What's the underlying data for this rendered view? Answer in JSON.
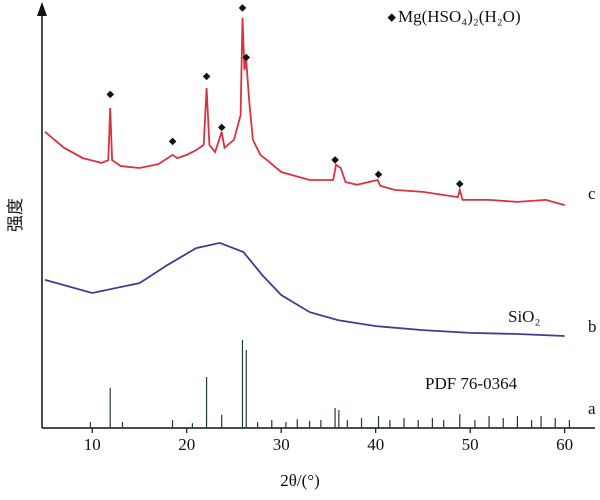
{
  "chart_data": {
    "type": "line",
    "xlabel": "2θ/(°)",
    "ylabel": "强度",
    "legend": {
      "symbol": "◆",
      "text": "Mg(HSO₄)₂(H₂O)",
      "position": "upper right"
    },
    "xlim": [
      5,
      63
    ],
    "xticks": [
      10,
      20,
      30,
      40,
      50,
      60
    ],
    "ylim": [
      0,
      106
    ],
    "series": [
      {
        "name": "c",
        "color": "#d9333f",
        "style": "line",
        "x": [
          5,
          7,
          9,
          11,
          11.7,
          11.9,
          12.1,
          13,
          15,
          17,
          18.5,
          19,
          20,
          21,
          21.8,
          22.1,
          22.4,
          23,
          23.7,
          24,
          25,
          25.7,
          25.9,
          26.1,
          26.3,
          26.6,
          27,
          27.8,
          28.5,
          30,
          33,
          35.5,
          35.8,
          36.3,
          36.8,
          38,
          40.2,
          40.5,
          42,
          45,
          48.7,
          48.9,
          49.2,
          52,
          55,
          58,
          60
        ],
        "values": [
          74.4,
          70.4,
          67.8,
          66.6,
          67.3,
          80.4,
          67.3,
          65.8,
          65.3,
          66.3,
          68.6,
          67.8,
          68.6,
          69.8,
          71.1,
          85.4,
          71.1,
          69.3,
          74.4,
          70.4,
          72.4,
          78.6,
          103.0,
          89.9,
          92.5,
          82.4,
          72.4,
          68.6,
          67.3,
          64.3,
          62.3,
          62.3,
          66.1,
          65.3,
          61.8,
          61.1,
          62.3,
          60.8,
          59.8,
          59.3,
          58.0,
          59.8,
          57.3,
          57.3,
          56.8,
          57.3,
          56.0
        ]
      },
      {
        "name": "b",
        "label": "SiO₂",
        "color": "#3b3f8f",
        "style": "line",
        "x": [
          5,
          10,
          15,
          18,
          21,
          23.5,
          26,
          28,
          30,
          33,
          36,
          40,
          45,
          50,
          55,
          60
        ],
        "values": [
          37.2,
          33.9,
          36.4,
          41.0,
          45.2,
          46.5,
          44.2,
          38.4,
          33.4,
          29.1,
          27.1,
          25.6,
          24.6,
          23.9,
          23.6,
          23.1
        ]
      },
      {
        "name": "a",
        "label": "PDF 76-0364",
        "color": "#1f3a3a",
        "style": "sticks",
        "x": [
          9.8,
          11.9,
          13.2,
          18.5,
          20.6,
          22.1,
          23.7,
          25.9,
          26.3,
          27.5,
          29,
          30.5,
          31.7,
          33,
          34.2,
          35.7,
          36.1,
          37,
          38.5,
          40.3,
          41.5,
          43,
          44.5,
          46,
          47.2,
          48.9,
          50.5,
          52,
          53.5,
          55,
          56.5,
          57.5,
          59,
          60.5
        ],
        "values": [
          1.5,
          10.1,
          1.5,
          2,
          1.2,
          12.8,
          3.3,
          22.1,
          19.6,
          1.5,
          2,
          1.5,
          2.2,
          1.8,
          2,
          5,
          4.5,
          2,
          2.5,
          3,
          2,
          2.5,
          2,
          2.5,
          2,
          3.5,
          2,
          3,
          2.5,
          3,
          2,
          3,
          2.5,
          2
        ]
      }
    ],
    "markers": {
      "symbol": "◆",
      "x": [
        11.9,
        18.5,
        22.1,
        23.7,
        25.9,
        26.3,
        35.7,
        40.3,
        48.9
      ],
      "y": [
        83.7,
        71.9,
        88.2,
        75.4,
        105.5,
        93,
        67.3,
        63.6,
        61.3
      ]
    }
  }
}
